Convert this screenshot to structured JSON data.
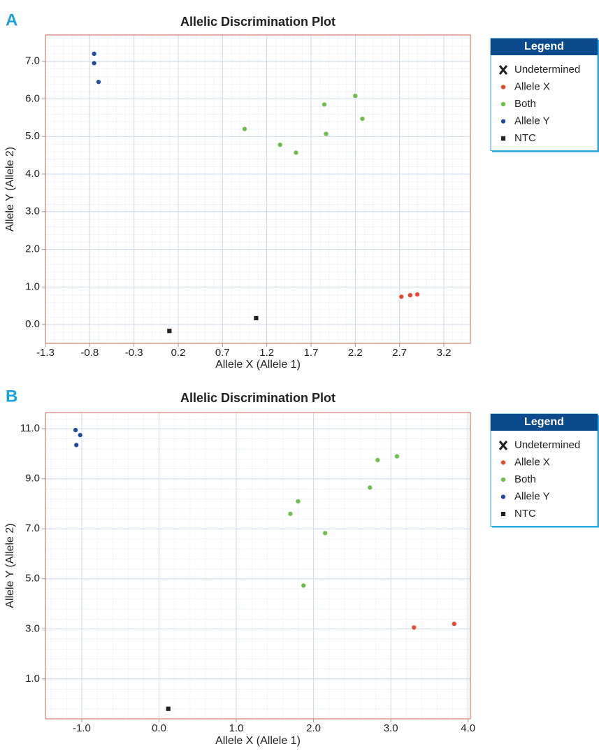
{
  "chart_data": [
    {
      "type": "scatter",
      "panel": "A",
      "title": "Allelic Discrimination Plot",
      "x_label": "Allele X (Allele 1)",
      "y_label": "Allele Y (Allele 2)",
      "xlim": [
        -1.3,
        3.5
      ],
      "ylim": [
        -0.5,
        7.7
      ],
      "xticks": [
        -1.3,
        -0.8,
        -0.3,
        0.2,
        0.7,
        1.2,
        1.7,
        2.2,
        2.7,
        3.2
      ],
      "yticks": [
        {
          "value": 0,
          "label": "0.0"
        },
        {
          "value": 1,
          "label": "1.0"
        },
        {
          "value": 2,
          "label": "2.0"
        },
        {
          "value": 3,
          "label": "3.0"
        },
        {
          "value": 4,
          "label": "4.0"
        },
        {
          "value": 5,
          "label": "5.0"
        },
        {
          "value": 6,
          "label": "6.0"
        },
        {
          "value": 7,
          "label": "7.0"
        }
      ],
      "grid": true,
      "legend_title": "Legend",
      "series": [
        {
          "name": "Undetermined",
          "color": "#231f20",
          "marker": "x",
          "x": [],
          "y": []
        },
        {
          "name": "Allele X",
          "color": "#e8472e",
          "marker": "circle",
          "x": [
            2.72,
            2.82,
            2.9
          ],
          "y": [
            0.74,
            0.78,
            0.8
          ]
        },
        {
          "name": "Both",
          "color": "#6cc04a",
          "marker": "circle",
          "x": [
            0.95,
            1.35,
            1.53,
            1.85,
            1.87,
            2.2,
            2.28
          ],
          "y": [
            5.2,
            4.78,
            4.57,
            5.85,
            5.07,
            6.08,
            5.47
          ]
        },
        {
          "name": "Allele Y",
          "color": "#1e4b9b",
          "marker": "circle",
          "x": [
            -0.75,
            -0.75,
            -0.7
          ],
          "y": [
            7.2,
            6.95,
            6.45
          ]
        },
        {
          "name": "NTC",
          "color": "#231f20",
          "marker": "square",
          "x": [
            0.1,
            1.08
          ],
          "y": [
            -0.17,
            0.17
          ]
        }
      ]
    },
    {
      "type": "scatter",
      "panel": "B",
      "title": "Allelic Discrimination Plot",
      "x_label": "Allele X (Allele 1)",
      "y_label": "Allele Y (Allele 2)",
      "xlim": [
        -1.47,
        4.03
      ],
      "ylim": [
        -0.6,
        11.65
      ],
      "xticks": [
        {
          "value": -1,
          "label": "-1.0"
        },
        {
          "value": 0,
          "label": "0.0"
        },
        {
          "value": 1,
          "label": "1.0"
        },
        {
          "value": 2,
          "label": "2.0"
        },
        {
          "value": 3,
          "label": "3.0"
        },
        {
          "value": 4,
          "label": "4.0"
        }
      ],
      "yticks": [
        {
          "value": 1,
          "label": "1.0"
        },
        {
          "value": 3,
          "label": "3.0"
        },
        {
          "value": 5,
          "label": "5.0"
        },
        {
          "value": 7,
          "label": "7.0"
        },
        {
          "value": 9,
          "label": "9.0"
        },
        {
          "value": 11,
          "label": "11.0"
        }
      ],
      "grid": true,
      "legend_title": "Legend",
      "series": [
        {
          "name": "Undetermined",
          "color": "#231f20",
          "marker": "x",
          "x": [],
          "y": []
        },
        {
          "name": "Allele X",
          "color": "#e8472e",
          "marker": "circle",
          "x": [
            3.3,
            3.82
          ],
          "y": [
            3.05,
            3.2
          ]
        },
        {
          "name": "Both",
          "color": "#6cc04a",
          "marker": "circle",
          "x": [
            1.7,
            1.8,
            1.87,
            2.15,
            2.73,
            2.83,
            3.08
          ],
          "y": [
            7.6,
            8.1,
            4.73,
            6.83,
            8.65,
            9.75,
            9.9
          ]
        },
        {
          "name": "Allele Y",
          "color": "#1e4b9b",
          "marker": "circle",
          "x": [
            -1.08,
            -1.02,
            -1.07
          ],
          "y": [
            10.95,
            10.75,
            10.35
          ]
        },
        {
          "name": "NTC",
          "color": "#231f20",
          "marker": "square",
          "x": [
            0.12
          ],
          "y": [
            -0.2
          ]
        }
      ]
    }
  ]
}
